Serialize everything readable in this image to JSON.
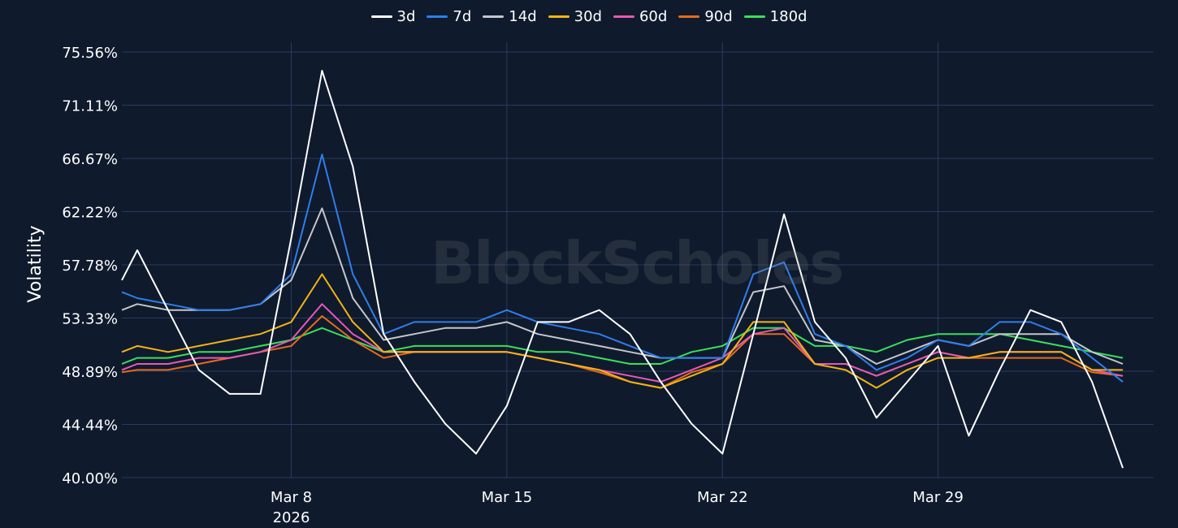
{
  "watermark": "BlockScholes",
  "chart_data": {
    "type": "line",
    "title": "",
    "xlabel": "",
    "ylabel": "Volatility",
    "x_start": "2026-03-02T12:00",
    "x_end": "2026-04-05T00:00",
    "ylim": [
      40.0,
      75.56
    ],
    "yticks": [
      "75.56%",
      "71.11%",
      "66.67%",
      "62.22%",
      "57.78%",
      "53.33%",
      "48.89%",
      "44.44%",
      "40.00%"
    ],
    "xticks": [
      {
        "date": "2026-03-08",
        "label": "Mar 8",
        "sublabel": "2026"
      },
      {
        "date": "2026-03-15",
        "label": "Mar 15",
        "sublabel": ""
      },
      {
        "date": "2026-03-22",
        "label": "Mar 22",
        "sublabel": ""
      },
      {
        "date": "2026-03-29",
        "label": "Mar 29",
        "sublabel": ""
      }
    ],
    "grid": true,
    "legend_position": "top-center",
    "series": [
      {
        "name": "3d",
        "color": "#ffffff",
        "x": [
          "2026-03-02",
          "2026-03-03",
          "2026-03-04",
          "2026-03-05",
          "2026-03-06",
          "2026-03-07",
          "2026-03-08",
          "2026-03-09",
          "2026-03-10",
          "2026-03-11",
          "2026-03-12",
          "2026-03-13",
          "2026-03-14",
          "2026-03-15",
          "2026-03-16",
          "2026-03-17",
          "2026-03-18",
          "2026-03-19",
          "2026-03-20",
          "2026-03-21",
          "2026-03-22",
          "2026-03-23",
          "2026-03-24",
          "2026-03-25",
          "2026-03-26",
          "2026-03-27",
          "2026-03-28",
          "2026-03-29",
          "2026-03-30",
          "2026-03-31",
          "2026-04-01",
          "2026-04-02",
          "2026-04-03",
          "2026-04-04"
        ],
        "values": [
          56.5,
          59,
          54,
          49,
          47,
          47,
          60,
          74,
          66,
          52,
          48,
          44.5,
          42,
          46,
          53,
          53,
          54,
          52,
          48,
          44.5,
          42,
          52,
          62,
          53,
          50,
          45,
          48,
          51,
          43.5,
          49,
          54,
          53,
          48,
          40.8
        ]
      },
      {
        "name": "7d",
        "color": "#2f7ee9",
        "x": [
          "2026-03-02",
          "2026-03-03",
          "2026-03-04",
          "2026-03-05",
          "2026-03-06",
          "2026-03-07",
          "2026-03-08",
          "2026-03-09",
          "2026-03-10",
          "2026-03-11",
          "2026-03-12",
          "2026-03-13",
          "2026-03-14",
          "2026-03-15",
          "2026-03-16",
          "2026-03-17",
          "2026-03-18",
          "2026-03-19",
          "2026-03-20",
          "2026-03-21",
          "2026-03-22",
          "2026-03-23",
          "2026-03-24",
          "2026-03-25",
          "2026-03-26",
          "2026-03-27",
          "2026-03-28",
          "2026-03-29",
          "2026-03-30",
          "2026-03-31",
          "2026-04-01",
          "2026-04-02",
          "2026-04-03",
          "2026-04-04"
        ],
        "values": [
          55.5,
          55,
          54.5,
          54,
          54,
          54.5,
          57,
          67,
          57,
          52,
          53,
          53,
          53,
          54,
          53,
          52.5,
          52,
          51,
          50,
          50,
          50,
          57,
          58,
          52,
          51,
          49,
          50,
          51.5,
          51,
          53,
          53,
          52,
          50,
          48
        ]
      },
      {
        "name": "14d",
        "color": "#c4c6cc",
        "x": [
          "2026-03-02",
          "2026-03-03",
          "2026-03-04",
          "2026-03-05",
          "2026-03-06",
          "2026-03-07",
          "2026-03-08",
          "2026-03-09",
          "2026-03-10",
          "2026-03-11",
          "2026-03-12",
          "2026-03-13",
          "2026-03-14",
          "2026-03-15",
          "2026-03-16",
          "2026-03-17",
          "2026-03-18",
          "2026-03-19",
          "2026-03-20",
          "2026-03-21",
          "2026-03-22",
          "2026-03-23",
          "2026-03-24",
          "2026-03-25",
          "2026-03-26",
          "2026-03-27",
          "2026-03-28",
          "2026-03-29",
          "2026-03-30",
          "2026-03-31",
          "2026-04-01",
          "2026-04-02",
          "2026-04-03",
          "2026-04-04"
        ],
        "values": [
          54,
          54.5,
          54,
          54,
          54,
          54.5,
          56.5,
          62.5,
          55,
          51.5,
          52,
          52.5,
          52.5,
          53,
          52,
          51.5,
          51,
          50.5,
          50,
          50,
          50,
          55.5,
          56,
          51.5,
          51,
          49.5,
          50.5,
          51.5,
          51,
          52,
          52,
          52,
          50.5,
          49.5
        ]
      },
      {
        "name": "30d",
        "color": "#f2b416",
        "x": [
          "2026-03-02",
          "2026-03-03",
          "2026-03-04",
          "2026-03-05",
          "2026-03-06",
          "2026-03-07",
          "2026-03-08",
          "2026-03-09",
          "2026-03-10",
          "2026-03-11",
          "2026-03-12",
          "2026-03-13",
          "2026-03-14",
          "2026-03-15",
          "2026-03-16",
          "2026-03-17",
          "2026-03-18",
          "2026-03-19",
          "2026-03-20",
          "2026-03-21",
          "2026-03-22",
          "2026-03-23",
          "2026-03-24",
          "2026-03-25",
          "2026-03-26",
          "2026-03-27",
          "2026-03-28",
          "2026-03-29",
          "2026-03-30",
          "2026-03-31",
          "2026-04-01",
          "2026-04-02",
          "2026-04-03",
          "2026-04-04"
        ],
        "values": [
          50.5,
          51,
          50.5,
          51,
          51.5,
          52,
          53,
          57,
          53,
          50.5,
          50.5,
          50.5,
          50.5,
          50.5,
          50,
          49.5,
          49,
          48,
          47.5,
          48.5,
          49.5,
          53,
          53,
          49.5,
          49,
          47.5,
          49,
          50,
          50,
          50.5,
          50.5,
          50.5,
          49,
          49
        ]
      },
      {
        "name": "60d",
        "color": "#e659b5",
        "x": [
          "2026-03-02",
          "2026-03-03",
          "2026-03-04",
          "2026-03-05",
          "2026-03-06",
          "2026-03-07",
          "2026-03-08",
          "2026-03-09",
          "2026-03-10",
          "2026-03-11",
          "2026-03-12",
          "2026-03-13",
          "2026-03-14",
          "2026-03-15",
          "2026-03-16",
          "2026-03-17",
          "2026-03-18",
          "2026-03-19",
          "2026-03-20",
          "2026-03-21",
          "2026-03-22",
          "2026-03-23",
          "2026-03-24",
          "2026-03-25",
          "2026-03-26",
          "2026-03-27",
          "2026-03-28",
          "2026-03-29",
          "2026-03-30",
          "2026-03-31",
          "2026-04-01",
          "2026-04-02",
          "2026-04-03",
          "2026-04-04"
        ],
        "values": [
          49,
          49.5,
          49.5,
          50,
          50,
          50.5,
          51.5,
          54.5,
          52,
          50.5,
          50.5,
          50.5,
          50.5,
          50.5,
          50,
          49.5,
          49,
          48.5,
          48,
          49,
          50,
          52,
          52.5,
          49.5,
          49.5,
          48.5,
          49.5,
          50.5,
          50,
          50.5,
          50.5,
          50.5,
          49,
          48.5
        ]
      },
      {
        "name": "90d",
        "color": "#e56a1c",
        "x": [
          "2026-03-02",
          "2026-03-03",
          "2026-03-04",
          "2026-03-05",
          "2026-03-06",
          "2026-03-07",
          "2026-03-08",
          "2026-03-09",
          "2026-03-10",
          "2026-03-11",
          "2026-03-12",
          "2026-03-13",
          "2026-03-14",
          "2026-03-15",
          "2026-03-16",
          "2026-03-17",
          "2026-03-18",
          "2026-03-19",
          "2026-03-20",
          "2026-03-21",
          "2026-03-22",
          "2026-03-23",
          "2026-03-24",
          "2026-03-25",
          "2026-03-26",
          "2026-03-27",
          "2026-03-28",
          "2026-03-29",
          "2026-03-30",
          "2026-03-31",
          "2026-04-01",
          "2026-04-02",
          "2026-04-03",
          "2026-04-04"
        ],
        "values": [
          48.8,
          49,
          49,
          49.5,
          50,
          50.5,
          51,
          53.5,
          51.5,
          50,
          50.5,
          50.5,
          50.5,
          50.5,
          50,
          49.5,
          48.8,
          48,
          47.5,
          48.8,
          49.5,
          52,
          52,
          49.5,
          49.5,
          48.5,
          49.5,
          50.5,
          50,
          50,
          50,
          50,
          48.8,
          48.5
        ]
      },
      {
        "name": "180d",
        "color": "#39e05a",
        "x": [
          "2026-03-02",
          "2026-03-03",
          "2026-03-04",
          "2026-03-05",
          "2026-03-06",
          "2026-03-07",
          "2026-03-08",
          "2026-03-09",
          "2026-03-10",
          "2026-03-11",
          "2026-03-12",
          "2026-03-13",
          "2026-03-14",
          "2026-03-15",
          "2026-03-16",
          "2026-03-17",
          "2026-03-18",
          "2026-03-19",
          "2026-03-20",
          "2026-03-21",
          "2026-03-22",
          "2026-03-23",
          "2026-03-24",
          "2026-03-25",
          "2026-03-26",
          "2026-03-27",
          "2026-03-28",
          "2026-03-29",
          "2026-03-30",
          "2026-03-31",
          "2026-04-01",
          "2026-04-02",
          "2026-04-03",
          "2026-04-04"
        ],
        "values": [
          49.5,
          50,
          50,
          50.5,
          50.5,
          51,
          51.5,
          52.5,
          51.5,
          50.5,
          51,
          51,
          51,
          51,
          50.5,
          50.5,
          50,
          49.5,
          49.5,
          50.5,
          51,
          52.5,
          52.5,
          51,
          51,
          50.5,
          51.5,
          52,
          52,
          52,
          51.5,
          51,
          50.5,
          50
        ]
      }
    ]
  }
}
